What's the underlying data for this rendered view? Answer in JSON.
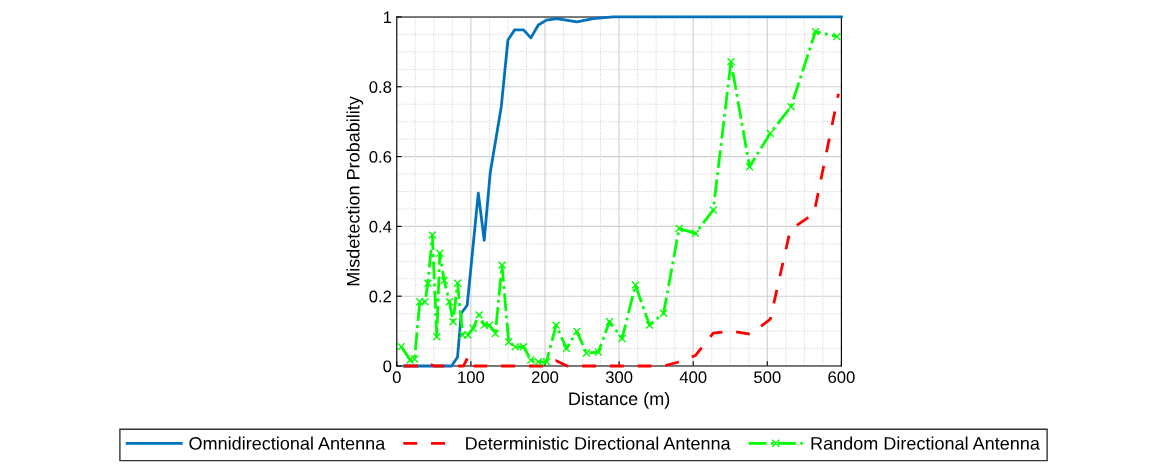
{
  "chart_data": {
    "type": "line",
    "xlabel": "Distance (m)",
    "ylabel": "Misdetection Probability",
    "xlim": [
      0,
      600
    ],
    "xticks": [
      0,
      100,
      200,
      300,
      400,
      500,
      600
    ],
    "ylim": [
      0,
      1
    ],
    "yticks": [
      0,
      0.2,
      0.4,
      0.6,
      0.8,
      1
    ],
    "grid": true,
    "legend": "bottom",
    "series": [
      {
        "name": "Omnidirectional Antenna",
        "color": "#0072bd",
        "line_style": "solid",
        "marker": "none",
        "x": [
          10,
          30,
          62,
          74,
          82,
          87,
          95,
          110,
          118,
          126,
          141,
          150,
          159,
          171,
          181,
          191,
          202,
          216,
          243,
          265,
          292,
          350,
          450,
          600
        ],
        "values": [
          0,
          0,
          0,
          0,
          0.026,
          0.151,
          0.174,
          0.495,
          0.36,
          0.552,
          0.743,
          0.934,
          0.963,
          0.963,
          0.94,
          0.977,
          0.991,
          0.995,
          0.986,
          0.995,
          1,
          1,
          1,
          1
        ]
      },
      {
        "name": "Deterministic Directional Antenna",
        "color": "#ff0000",
        "line_style": "dashed",
        "marker": "none",
        "x": [
          10,
          30,
          40,
          50,
          90,
          97,
          105,
          200,
          215,
          230,
          360,
          378,
          403,
          427,
          452,
          477,
          504,
          531,
          563,
          596
        ],
        "values": [
          0,
          0,
          0.01,
          0,
          0,
          0.03,
          0,
          0,
          0.015,
          0,
          0,
          0.01,
          0.03,
          0.094,
          0.1,
          0.091,
          0.134,
          0.39,
          0.437,
          0.78
        ]
      },
      {
        "name": "Random Directional Antenna",
        "color": "#00ff00",
        "line_style": "dashdot",
        "marker": "cross",
        "x": [
          6,
          18,
          24,
          31,
          38,
          42,
          48,
          54,
          58,
          64,
          71,
          76,
          82,
          89,
          96,
          103,
          111,
          118,
          125,
          133,
          142,
          151,
          160,
          171,
          181,
          191,
          202,
          215,
          229,
          243,
          256,
          272,
          287,
          304,
          322,
          341,
          360,
          381,
          403,
          427,
          451,
          476,
          504,
          532,
          565,
          594
        ],
        "values": [
          0.055,
          0.017,
          0.02,
          0.184,
          0.184,
          0.237,
          0.375,
          0.084,
          0.323,
          0.245,
          0.184,
          0.127,
          0.237,
          0.089,
          0.089,
          0.108,
          0.146,
          0.117,
          0.117,
          0.093,
          0.289,
          0.069,
          0.055,
          0.055,
          0.017,
          0.012,
          0.012,
          0.117,
          0.05,
          0.099,
          0.037,
          0.04,
          0.127,
          0.079,
          0.232,
          0.117,
          0.151,
          0.394,
          0.38,
          0.447,
          0.872,
          0.571,
          0.667,
          0.743,
          0.958,
          0.944
        ]
      }
    ]
  }
}
